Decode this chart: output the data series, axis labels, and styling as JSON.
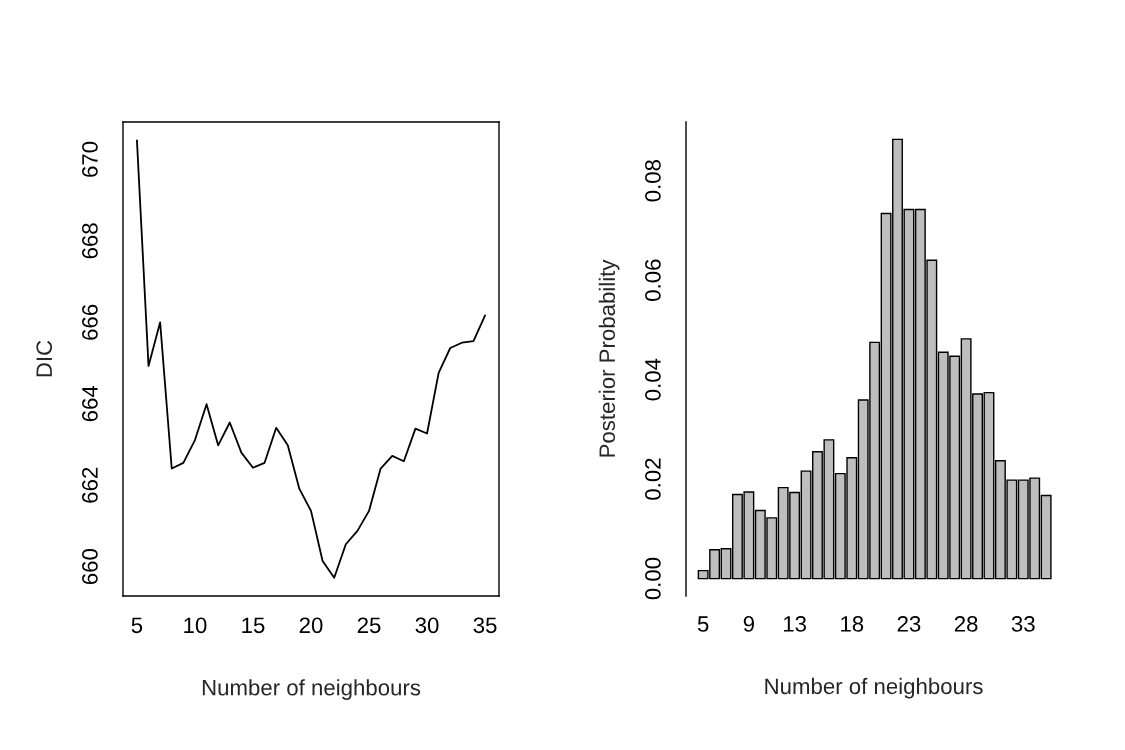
{
  "chart_data": [
    {
      "type": "line",
      "xlabel": "Number of neighbours",
      "ylabel": "DIC",
      "x": [
        5,
        6,
        7,
        8,
        9,
        10,
        11,
        12,
        13,
        14,
        15,
        16,
        17,
        18,
        19,
        20,
        21,
        22,
        23,
        24,
        25,
        26,
        27,
        28,
        29,
        30,
        31,
        32,
        33,
        34,
        35
      ],
      "series": [
        {
          "color": "#000000",
          "values": [
            670.47,
            664.93,
            666.0,
            662.41,
            662.55,
            663.11,
            663.99,
            662.98,
            663.54,
            662.8,
            662.43,
            662.55,
            663.41,
            662.98,
            661.91,
            661.37,
            660.14,
            659.73,
            660.55,
            660.88,
            661.37,
            662.41,
            662.72,
            662.59,
            663.39,
            663.27,
            664.76,
            665.37,
            665.5,
            665.54,
            666.17
          ]
        }
      ],
      "xlim": [
        3.8,
        36.2
      ],
      "ylim": [
        659.28,
        670.92
      ],
      "xticks": [
        5,
        10,
        15,
        20,
        25,
        30,
        35
      ],
      "yticks": [
        660,
        662,
        664,
        666,
        668,
        670
      ]
    },
    {
      "type": "bar",
      "xlabel": "Number of neighbours",
      "ylabel": "Posterior Probability",
      "categories": [
        "5",
        null,
        null,
        null,
        "9",
        null,
        null,
        null,
        "13",
        null,
        null,
        null,
        null,
        "18",
        null,
        null,
        null,
        null,
        "23",
        null,
        null,
        null,
        null,
        "28",
        null,
        null,
        null,
        null,
        "33",
        null,
        null
      ],
      "series": [
        {
          "color": "#bebebe",
          "values": [
            0.0016,
            0.0058,
            0.006,
            0.0169,
            0.0174,
            0.0137,
            0.0122,
            0.0183,
            0.0173,
            0.0216,
            0.0255,
            0.0279,
            0.0211,
            0.0243,
            0.0359,
            0.0475,
            0.0734,
            0.0883,
            0.0742,
            0.0742,
            0.064,
            0.0455,
            0.0447,
            0.0482,
            0.0371,
            0.0374,
            0.0237,
            0.0198,
            0.0198,
            0.0202,
            0.0167
          ]
        }
      ],
      "ylim": [
        -0.0035,
        0.0918
      ],
      "yticks": [
        {
          "value": 0,
          "label": "0.00"
        },
        0.02,
        0.04,
        0.06,
        0.08
      ]
    }
  ]
}
